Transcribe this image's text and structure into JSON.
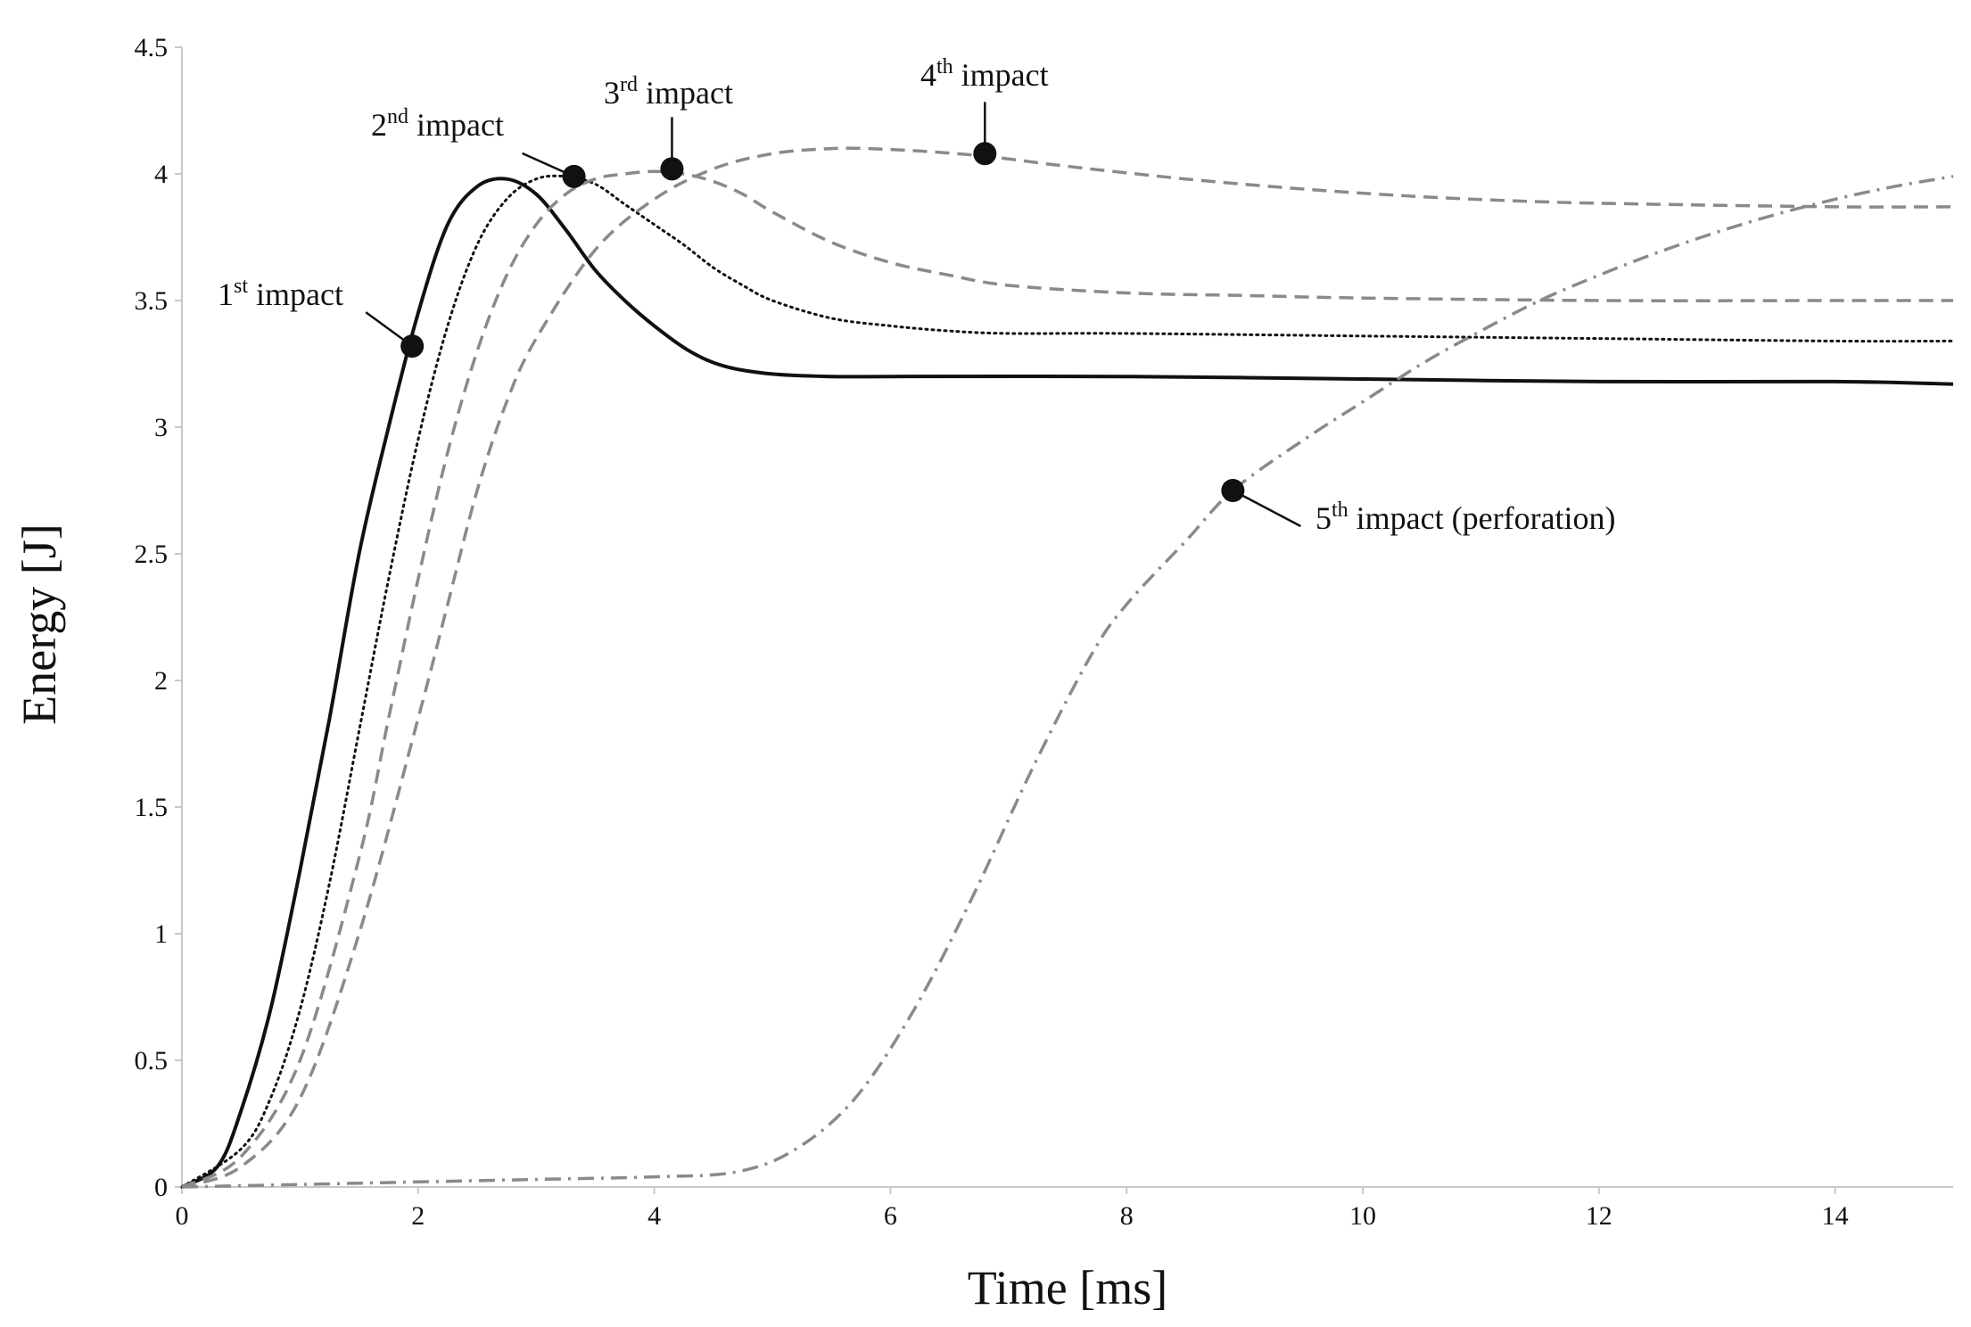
{
  "chart_data": {
    "type": "line",
    "title": "",
    "xlabel": "Time [ms]",
    "ylabel": "Energy [J]",
    "xlim": [
      0,
      15
    ],
    "ylim": [
      0,
      4.5
    ],
    "xticks": [
      0,
      2,
      4,
      6,
      8,
      10,
      12,
      14
    ],
    "yticks": [
      0,
      0.5,
      1,
      1.5,
      2,
      2.5,
      3,
      3.5,
      4,
      4.5
    ],
    "xtick_labels": [
      "0",
      "2",
      "4",
      "6",
      "8",
      "10",
      "12",
      "14"
    ],
    "ytick_labels": [
      "0",
      "0.5",
      "1",
      "1.5",
      "2",
      "2.5",
      "3",
      "3.5",
      "4",
      "4.5"
    ],
    "grid": false,
    "legend": "none",
    "colors": {
      "black": "#111111",
      "gray": "#8a8a8a"
    },
    "series": [
      {
        "name": "1st impact",
        "style": "solid",
        "color": "#111111",
        "x": [
          0,
          0.3,
          0.5,
          0.75,
          1.0,
          1.25,
          1.5,
          1.75,
          2.0,
          2.25,
          2.5,
          2.75,
          3.0,
          3.25,
          3.5,
          3.75,
          4.0,
          4.3,
          4.6,
          5.0,
          5.5,
          6,
          8,
          10,
          12,
          14,
          15
        ],
        "y": [
          0,
          0.08,
          0.3,
          0.7,
          1.25,
          1.85,
          2.5,
          3.0,
          3.45,
          3.8,
          3.95,
          3.98,
          3.92,
          3.78,
          3.62,
          3.5,
          3.4,
          3.3,
          3.24,
          3.21,
          3.2,
          3.2,
          3.2,
          3.19,
          3.18,
          3.18,
          3.17
        ]
      },
      {
        "name": "2nd impact",
        "style": "dotted",
        "color": "#111111",
        "x": [
          0,
          0.5,
          0.75,
          1.0,
          1.25,
          1.5,
          1.75,
          2.0,
          2.25,
          2.5,
          2.75,
          3.0,
          3.25,
          3.5,
          3.75,
          4.0,
          4.25,
          4.5,
          4.75,
          5.0,
          5.5,
          6.0,
          6.5,
          7.0,
          8,
          10,
          12,
          14,
          15
        ],
        "y": [
          0,
          0.15,
          0.35,
          0.7,
          1.2,
          1.8,
          2.4,
          2.95,
          3.4,
          3.72,
          3.9,
          3.98,
          3.99,
          3.96,
          3.88,
          3.8,
          3.72,
          3.63,
          3.56,
          3.5,
          3.43,
          3.4,
          3.38,
          3.37,
          3.37,
          3.36,
          3.35,
          3.34,
          3.34
        ]
      },
      {
        "name": "3rd impact",
        "style": "dashed",
        "color": "#8a8a8a",
        "x": [
          0,
          0.5,
          1.0,
          1.5,
          1.75,
          2.0,
          2.25,
          2.5,
          2.75,
          3.0,
          3.25,
          3.5,
          3.75,
          4.0,
          4.25,
          4.5,
          4.75,
          5.0,
          5.5,
          6.0,
          6.5,
          7.0,
          8,
          9,
          10,
          12,
          14,
          15
        ],
        "y": [
          0,
          0.12,
          0.5,
          1.3,
          1.85,
          2.4,
          2.9,
          3.3,
          3.6,
          3.8,
          3.92,
          3.98,
          4.0,
          4.01,
          4.0,
          3.97,
          3.92,
          3.85,
          3.73,
          3.65,
          3.6,
          3.56,
          3.53,
          3.52,
          3.51,
          3.5,
          3.5,
          3.5
        ]
      },
      {
        "name": "4th impact",
        "style": "dashed",
        "color": "#8a8a8a",
        "x": [
          0,
          0.5,
          1.0,
          1.5,
          2.0,
          2.25,
          2.5,
          2.75,
          3.0,
          3.5,
          4.0,
          4.5,
          5.0,
          5.5,
          5.8,
          6.25,
          6.8,
          7.5,
          8.5,
          9.5,
          10.5,
          11.5,
          12.5,
          14,
          15
        ],
        "y": [
          0,
          0.08,
          0.35,
          1.0,
          1.85,
          2.3,
          2.75,
          3.1,
          3.35,
          3.7,
          3.9,
          4.02,
          4.08,
          4.1,
          4.1,
          4.09,
          4.07,
          4.03,
          3.98,
          3.94,
          3.91,
          3.89,
          3.88,
          3.87,
          3.87
        ]
      },
      {
        "name": "5th impact (perforation)",
        "style": "dashdot",
        "color": "#8a8a8a",
        "x": [
          0,
          1,
          2,
          3,
          4,
          4.7,
          5.2,
          5.7,
          6.2,
          6.7,
          7.2,
          7.7,
          8.0,
          8.5,
          8.9,
          9.5,
          10.0,
          10.5,
          11.0,
          11.5,
          12.0,
          12.5,
          13.0,
          13.5,
          14.0,
          14.5,
          15
        ],
        "y": [
          0,
          0.01,
          0.02,
          0.03,
          0.04,
          0.06,
          0.15,
          0.35,
          0.7,
          1.15,
          1.65,
          2.1,
          2.3,
          2.55,
          2.75,
          2.95,
          3.1,
          3.25,
          3.38,
          3.5,
          3.6,
          3.69,
          3.77,
          3.84,
          3.9,
          3.95,
          3.99
        ]
      }
    ],
    "annotations": [
      {
        "base": "1",
        "sup": "st",
        "rest": " impact",
        "point": [
          1.95,
          3.32
        ]
      },
      {
        "base": "2",
        "sup": "nd",
        "rest": " impact",
        "point": [
          3.32,
          3.99
        ]
      },
      {
        "base": "3",
        "sup": "rd",
        "rest": " impact",
        "point": [
          4.15,
          4.02
        ]
      },
      {
        "base": "4",
        "sup": "th",
        "rest": " impact",
        "point": [
          6.8,
          4.08
        ]
      },
      {
        "base": "5",
        "sup": "th",
        "rest": " impact (perforation)",
        "point": [
          8.9,
          2.75
        ]
      }
    ]
  }
}
